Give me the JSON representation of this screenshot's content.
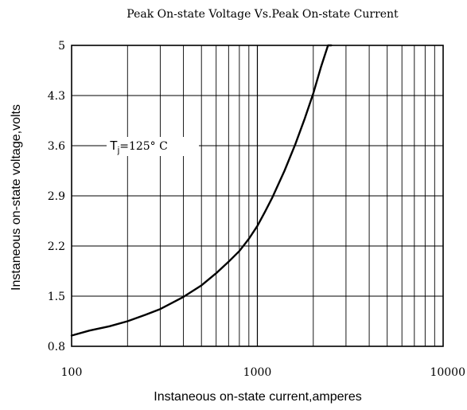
{
  "chart_data": {
    "type": "line",
    "title": "Peak On-state Voltage Vs.Peak On-state Current",
    "xlabel": "Instaneous on-state current,amperes",
    "ylabel": "Instaneous on-state voltage,volts",
    "x_scale": "log",
    "xlim": [
      100,
      10000
    ],
    "ylim": [
      0.8,
      5
    ],
    "x_ticks": [
      100,
      1000,
      10000
    ],
    "x_tick_labels": [
      "100",
      "1000",
      "10000"
    ],
    "y_ticks": [
      0.8,
      1.5,
      2.2,
      2.9,
      3.6,
      4.3,
      5
    ],
    "y_tick_labels": [
      "0.8",
      "1.5",
      "2.2",
      "2.9",
      "3.6",
      "4.3",
      "5"
    ],
    "grid": true,
    "annotation": {
      "symbol": "T",
      "subscript": "j",
      "text": "=125° C"
    },
    "series": [
      {
        "x": [
          100,
          125,
          160,
          200,
          250,
          300,
          350,
          400,
          500,
          600,
          700,
          800,
          900,
          1000,
          1100,
          1200,
          1400,
          1600,
          1800,
          2000,
          2200,
          2400,
          2500
        ],
        "y": [
          0.95,
          1.02,
          1.08,
          1.15,
          1.24,
          1.32,
          1.41,
          1.49,
          1.65,
          1.82,
          1.98,
          2.13,
          2.3,
          2.48,
          2.68,
          2.87,
          3.25,
          3.62,
          3.98,
          4.33,
          4.7,
          5.0,
          5.0
        ]
      }
    ]
  }
}
